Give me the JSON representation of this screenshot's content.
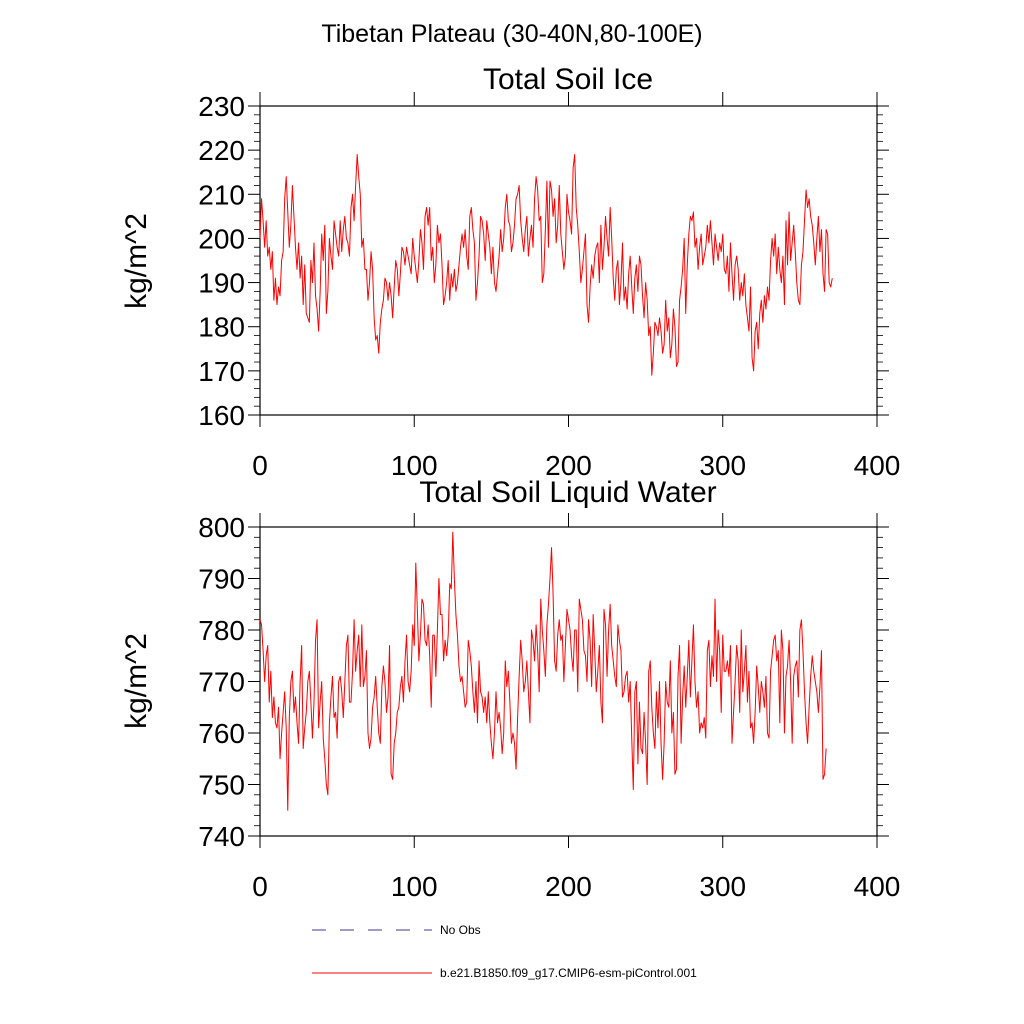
{
  "figure": {
    "title": "Tibetan Plateau (30-40N,80-100E)"
  },
  "colors": {
    "model_line": "#ff0000",
    "obs_line": "#3b3b8f",
    "axis": "#000000"
  },
  "chart_data": [
    {
      "type": "line",
      "title": "Total Soil Ice",
      "ylabel": "kg/m^2",
      "xlabel": "",
      "xlim": [
        0,
        400
      ],
      "ylim": [
        160,
        230
      ],
      "xticks": [
        0,
        100,
        200,
        300,
        400
      ],
      "yticks": [
        160,
        170,
        180,
        190,
        200,
        210,
        220,
        230
      ],
      "grid": false,
      "series": [
        {
          "name": "b.e21.B1850.f09_g17.CMIP6-esm-piControl.001",
          "x_start": 0,
          "x_step": 1,
          "values": [
            200,
            209,
            204,
            198,
            204,
            196,
            198,
            193,
            197,
            186,
            191,
            185,
            189,
            187,
            195,
            197,
            209,
            214,
            206,
            198,
            203,
            212,
            205,
            198,
            193,
            199,
            191,
            196,
            185,
            194,
            183,
            182,
            181,
            195,
            190,
            199,
            187,
            184,
            179,
            188,
            201,
            195,
            203,
            183,
            188,
            200,
            196,
            193,
            204,
            201,
            198,
            196,
            204,
            197,
            202,
            205,
            200,
            199,
            196,
            207,
            210,
            204,
            212,
            219,
            214,
            210,
            198,
            200,
            193,
            193,
            186,
            190,
            197,
            193,
            182,
            177,
            178,
            174,
            181,
            184,
            186,
            191,
            190,
            186,
            190,
            187,
            182,
            189,
            195,
            193,
            187,
            192,
            198,
            197,
            194,
            198,
            196,
            194,
            192,
            200,
            196,
            193,
            190,
            195,
            202,
            199,
            193,
            205,
            207,
            203,
            207,
            195,
            198,
            190,
            194,
            203,
            199,
            201,
            194,
            185,
            187,
            190,
            195,
            186,
            192,
            189,
            193,
            188,
            190,
            194,
            198,
            201,
            198,
            202,
            196,
            193,
            205,
            207,
            202,
            199,
            186,
            190,
            196,
            205,
            204,
            201,
            195,
            204,
            201,
            198,
            192,
            198,
            190,
            188,
            192,
            196,
            202,
            197,
            200,
            207,
            210,
            204,
            203,
            197,
            199,
            203,
            209,
            210,
            212,
            204,
            200,
            197,
            202,
            205,
            196,
            200,
            203,
            198,
            209,
            214,
            211,
            204,
            205,
            190,
            192,
            202,
            213,
            198,
            213,
            211,
            205,
            209,
            199,
            203,
            212,
            201,
            197,
            193,
            196,
            210,
            206,
            204,
            201,
            216,
            219,
            207,
            203,
            197,
            190,
            193,
            197,
            201,
            185,
            181,
            189,
            194,
            191,
            196,
            198,
            199,
            190,
            203,
            193,
            198,
            205,
            200,
            196,
            207,
            200,
            191,
            186,
            193,
            195,
            185,
            190,
            199,
            186,
            189,
            184,
            192,
            196,
            189,
            183,
            191,
            194,
            188,
            196,
            194,
            187,
            182,
            190,
            186,
            178,
            180,
            169,
            174,
            181,
            180,
            178,
            182,
            179,
            174,
            176,
            186,
            179,
            182,
            173,
            176,
            184,
            180,
            171,
            172,
            186,
            189,
            193,
            200,
            183,
            194,
            201,
            205,
            204,
            206,
            198,
            200,
            193,
            198,
            201,
            194,
            196,
            198,
            203,
            199,
            204,
            199,
            194,
            201,
            198,
            195,
            199,
            197,
            201,
            193,
            192,
            196,
            188,
            199,
            192,
            186,
            194,
            196,
            193,
            186,
            190,
            187,
            192,
            185,
            182,
            179,
            189,
            173,
            170,
            179,
            181,
            175,
            183,
            186,
            181,
            187,
            184,
            189,
            186,
            195,
            200,
            196,
            201,
            192,
            198,
            193,
            190,
            196,
            185,
            204,
            194,
            206,
            195,
            199,
            203,
            197,
            190,
            186,
            185,
            194,
            197,
            204,
            211,
            207,
            209,
            205,
            203,
            199,
            194,
            200,
            205,
            197,
            202,
            192,
            188,
            202,
            201,
            190,
            189,
            191
          ]
        }
      ]
    },
    {
      "type": "line",
      "title": "Total Soil Liquid Water",
      "ylabel": "kg/m^2",
      "xlabel": "",
      "xlim": [
        0,
        400
      ],
      "ylim": [
        740,
        800
      ],
      "xticks": [
        0,
        100,
        200,
        300,
        400
      ],
      "yticks": [
        740,
        750,
        760,
        770,
        780,
        790,
        800
      ],
      "grid": false,
      "series": [
        {
          "name": "b.e21.B1850.f09_g17.CMIP6-esm-piControl.001",
          "x_start": 0,
          "x_step": 1,
          "values": [
            782,
            781,
            776,
            770,
            775,
            777,
            766,
            772,
            763,
            767,
            762,
            761,
            765,
            755,
            760,
            764,
            768,
            761,
            745,
            763,
            770,
            772,
            764,
            767,
            762,
            758,
            770,
            777,
            757,
            761,
            764,
            770,
            772,
            766,
            759,
            766,
            778,
            782,
            761,
            766,
            770,
            759,
            755,
            750,
            748,
            762,
            767,
            771,
            763,
            764,
            759,
            770,
            771,
            768,
            763,
            770,
            777,
            779,
            766,
            766,
            772,
            782,
            772,
            776,
            779,
            769,
            781,
            769,
            771,
            776,
            760,
            757,
            759,
            765,
            767,
            771,
            765,
            760,
            758,
            769,
            773,
            770,
            764,
            767,
            777,
            752,
            751,
            758,
            760,
            764,
            765,
            769,
            771,
            766,
            774,
            779,
            770,
            768,
            772,
            781,
            777,
            793,
            784,
            774,
            779,
            786,
            785,
            778,
            777,
            781,
            775,
            765,
            779,
            779,
            771,
            780,
            790,
            783,
            783,
            774,
            778,
            775,
            779,
            789,
            788,
            799,
            790,
            783,
            779,
            773,
            770,
            771,
            768,
            765,
            766,
            778,
            776,
            773,
            768,
            764,
            770,
            762,
            774,
            768,
            767,
            764,
            767,
            762,
            768,
            762,
            758,
            755,
            760,
            768,
            762,
            764,
            761,
            756,
            760,
            774,
            769,
            772,
            766,
            758,
            760,
            758,
            753,
            763,
            771,
            778,
            774,
            768,
            770,
            774,
            768,
            762,
            780,
            778,
            774,
            781,
            776,
            768,
            786,
            780,
            776,
            771,
            781,
            785,
            790,
            796,
            787,
            774,
            772,
            779,
            782,
            778,
            779,
            770,
            777,
            784,
            782,
            780,
            775,
            772,
            780,
            780,
            768,
            786,
            784,
            782,
            776,
            775,
            770,
            782,
            778,
            769,
            783,
            776,
            768,
            772,
            777,
            766,
            762,
            784,
            781,
            771,
            780,
            785,
            777,
            774,
            771,
            769,
            781,
            778,
            776,
            767,
            768,
            771,
            772,
            766,
            770,
            759,
            749,
            768,
            770,
            754,
            766,
            757,
            756,
            764,
            758,
            750,
            772,
            774,
            765,
            760,
            757,
            768,
            761,
            770,
            758,
            751,
            758,
            770,
            766,
            765,
            774,
            760,
            764,
            752,
            753,
            771,
            777,
            758,
            767,
            773,
            765,
            771,
            778,
            767,
            774,
            781,
            770,
            765,
            768,
            760,
            762,
            761,
            763,
            759,
            776,
            778,
            769,
            775,
            771,
            786,
            770,
            780,
            776,
            764,
            779,
            772,
            772,
            774,
            771,
            777,
            758,
            764,
            770,
            777,
            774,
            764,
            780,
            768,
            772,
            777,
            766,
            772,
            761,
            762,
            758,
            764,
            773,
            769,
            764,
            770,
            768,
            765,
            771,
            760,
            759,
            772,
            775,
            778,
            779,
            774,
            776,
            762,
            780,
            776,
            760,
            771,
            773,
            778,
            770,
            758,
            771,
            773,
            774,
            767,
            780,
            782,
            776,
            768,
            762,
            758,
            765,
            771,
            775,
            772,
            770,
            768,
            764,
            769,
            776,
            751,
            752,
            757
          ]
        }
      ]
    }
  ],
  "legend": {
    "items": [
      {
        "label": "No Obs",
        "style": "dashed",
        "color": "#3b3b8f"
      },
      {
        "label": "b.e21.B1850.f09_g17.CMIP6-esm-piControl.001",
        "style": "solid",
        "color": "#ff0000"
      }
    ]
  }
}
